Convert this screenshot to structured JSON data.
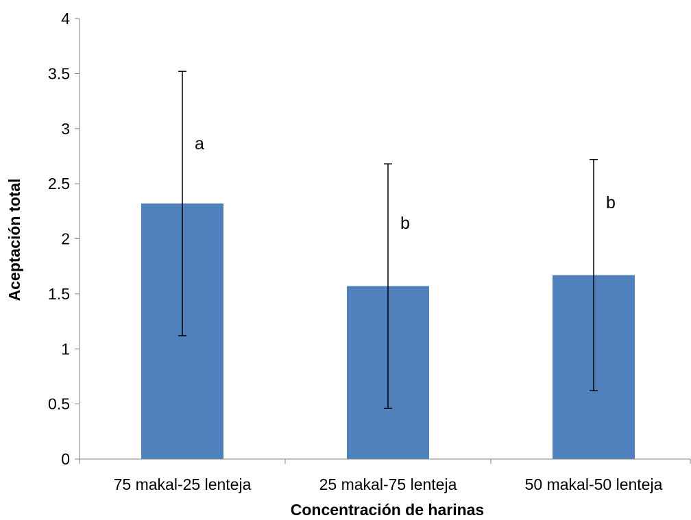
{
  "chart_data": {
    "type": "bar",
    "title": "",
    "xlabel": "Concentración de harinas",
    "ylabel": "Aceptación total",
    "categories": [
      "75 makal-25 lenteja",
      "25 makal-75 lenteja",
      "50 makal-50 lenteja"
    ],
    "values": [
      2.32,
      1.57,
      1.67
    ],
    "error_bars": [
      {
        "lower": 1.12,
        "upper": 3.52
      },
      {
        "lower": 0.46,
        "upper": 2.68
      },
      {
        "lower": 0.62,
        "upper": 2.72
      }
    ],
    "significance_letters": [
      "a",
      "b",
      "b"
    ],
    "ylim": [
      0,
      4
    ],
    "yticks": [
      "0",
      "0.5",
      "1",
      "1.5",
      "2",
      "2.5",
      "3",
      "3.5",
      "4"
    ],
    "grid": false,
    "legend": "none",
    "colors": {
      "bar": "#4F81BD",
      "axis": "#808080",
      "error_bar": "#000000"
    }
  }
}
